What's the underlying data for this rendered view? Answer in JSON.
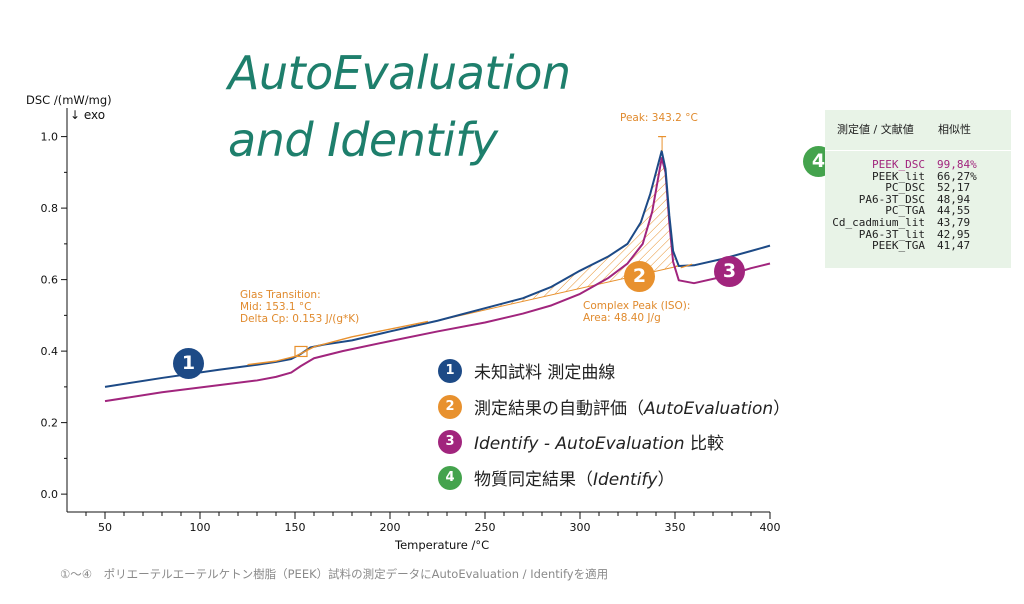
{
  "headline": {
    "line1": "AutoEvaluation",
    "line2": "and Identify"
  },
  "chart_data": {
    "type": "line",
    "xlabel": "Temperature /°C",
    "ylabel": "DSC /(mW/mg)",
    "y_direction_note": "↓ exo",
    "xlim": [
      30,
      400
    ],
    "ylim": [
      -0.05,
      1.08
    ],
    "x_ticks": [
      "50",
      "100",
      "150",
      "200",
      "250",
      "300",
      "350",
      "400"
    ],
    "y_ticks": [
      "0.0",
      "0.2",
      "0.4",
      "0.6",
      "0.8",
      "1.0"
    ],
    "series": [
      {
        "color": "#1d4a86",
        "points": [
          [
            50,
            0.3
          ],
          [
            80,
            0.325
          ],
          [
            110,
            0.348
          ],
          [
            130,
            0.362
          ],
          [
            140,
            0.37
          ],
          [
            148,
            0.378
          ],
          [
            153,
            0.392
          ],
          [
            158,
            0.41
          ],
          [
            165,
            0.418
          ],
          [
            180,
            0.43
          ],
          [
            200,
            0.455
          ],
          [
            225,
            0.485
          ],
          [
            250,
            0.52
          ],
          [
            270,
            0.548
          ],
          [
            285,
            0.58
          ],
          [
            300,
            0.625
          ],
          [
            315,
            0.665
          ],
          [
            325,
            0.7
          ],
          [
            332,
            0.76
          ],
          [
            337,
            0.84
          ],
          [
            341,
            0.92
          ],
          [
            343,
            0.96
          ],
          [
            345,
            0.91
          ],
          [
            347,
            0.78
          ],
          [
            349,
            0.68
          ],
          [
            352,
            0.638
          ],
          [
            360,
            0.64
          ],
          [
            375,
            0.658
          ],
          [
            390,
            0.68
          ],
          [
            400,
            0.695
          ]
        ]
      },
      {
        "color": "#a1257d",
        "points": [
          [
            50,
            0.26
          ],
          [
            80,
            0.285
          ],
          [
            110,
            0.305
          ],
          [
            130,
            0.318
          ],
          [
            140,
            0.328
          ],
          [
            148,
            0.34
          ],
          [
            153,
            0.358
          ],
          [
            160,
            0.38
          ],
          [
            175,
            0.4
          ],
          [
            200,
            0.428
          ],
          [
            225,
            0.455
          ],
          [
            250,
            0.48
          ],
          [
            270,
            0.505
          ],
          [
            285,
            0.528
          ],
          [
            300,
            0.56
          ],
          [
            315,
            0.605
          ],
          [
            325,
            0.645
          ],
          [
            333,
            0.7
          ],
          [
            338,
            0.79
          ],
          [
            341,
            0.88
          ],
          [
            343,
            0.94
          ],
          [
            345,
            0.9
          ],
          [
            347,
            0.76
          ],
          [
            349,
            0.65
          ],
          [
            352,
            0.598
          ],
          [
            360,
            0.59
          ],
          [
            375,
            0.608
          ],
          [
            390,
            0.632
          ],
          [
            400,
            0.645
          ]
        ]
      },
      {
        "color": "#e8912e",
        "points": [
          [
            125,
            0.362
          ],
          [
            140,
            0.372
          ],
          [
            150,
            0.385
          ],
          [
            160,
            0.412
          ],
          [
            180,
            0.44
          ],
          [
            220,
            0.483
          ]
        ]
      }
    ],
    "annotations": {
      "glass_transition": [
        "Glas Transition:",
        "Mid: 153.1 °C",
        "Delta Cp: 0.153 J/(g*K)"
      ],
      "peak": "Peak: 343.2 °C",
      "complex_peak": [
        "Complex Peak (ISO):",
        "Area: 48.40 J/g"
      ],
      "peak_x": 343.2
    }
  },
  "legend": [
    {
      "num": "1",
      "text": "未知試料 測定曲線",
      "color": "#1d4a86"
    },
    {
      "num": "2",
      "text": "測定結果の自動評価（",
      "italic": "AutoEvaluation",
      "tail": "）",
      "color": "#e8912e"
    },
    {
      "num": "3",
      "italic": "Identify - AutoEvaluation",
      "text": "",
      "tail": " 比較",
      "color": "#a1257d"
    },
    {
      "num": "4",
      "text": "物質同定結果（",
      "italic": "Identify",
      "tail": "）",
      "color": "#44a34d"
    }
  ],
  "badges": {
    "b1": "1",
    "b2": "2",
    "b3": "3",
    "b4": "4"
  },
  "results": {
    "header_name": "測定値 / 文献値",
    "header_sim": "相似性",
    "rows": [
      {
        "name": "PEEK_DSC",
        "value": "99,84%",
        "color": "#a1257d"
      },
      {
        "name": "PEEK_lit",
        "value": "66,27%",
        "color": "#222222"
      },
      {
        "name": "PC_DSC",
        "value": "52,17",
        "color": "#222222"
      },
      {
        "name": "PA6-3T_DSC",
        "value": "48,94",
        "color": "#222222"
      },
      {
        "name": "PC_TGA",
        "value": "44,55",
        "color": "#222222"
      },
      {
        "name": "Cd_cadmium_lit",
        "value": "43,79",
        "color": "#222222"
      },
      {
        "name": "PA6-3T_lit",
        "value": "42,95",
        "color": "#222222"
      },
      {
        "name": "PEEK_TGA",
        "value": "41,47",
        "color": "#222222"
      }
    ]
  },
  "caption": "①〜④　ポリエーテルエーテルケトン樹脂（PEEK）試料の測定データにAutoEvaluation / Identifyを適用"
}
